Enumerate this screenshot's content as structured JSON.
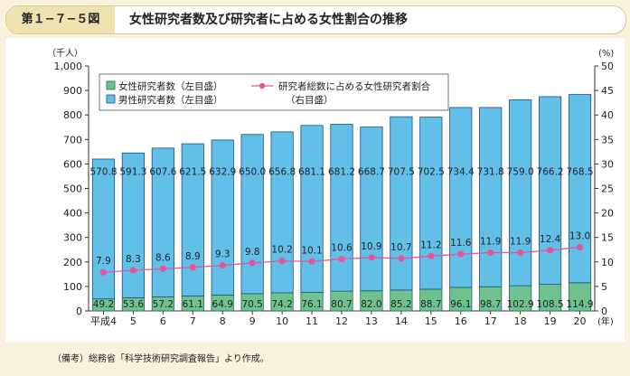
{
  "header": {
    "figure_number": "第１−７−５図",
    "title": "女性研究者数及び研究者に占める女性割合の推移"
  },
  "note": "（備考）総務省「科学技術研究調査報告」より作成。",
  "colors": {
    "female_bar": "#6fc28f",
    "male_bar": "#62c0e8",
    "ratio_line": "#e4559a",
    "background": "#f8f2dc"
  },
  "chart_data": {
    "type": "bar",
    "stacked": true,
    "y_left_unit": "（千人）",
    "y_right_unit": "(%)",
    "x_unit": "(年)",
    "y_left_ticks": [
      "0",
      "100",
      "200",
      "300",
      "400",
      "500",
      "600",
      "700",
      "800",
      "900",
      "1,000"
    ],
    "y_right_ticks": [
      "0",
      "5",
      "10",
      "15",
      "20",
      "25",
      "30",
      "35",
      "40",
      "45",
      "50"
    ],
    "ylim_left": [
      0,
      1000
    ],
    "ylim_right": [
      0,
      50
    ],
    "categories": [
      "平成4",
      "5",
      "6",
      "7",
      "8",
      "9",
      "10",
      "11",
      "12",
      "13",
      "14",
      "15",
      "16",
      "17",
      "18",
      "19",
      "20"
    ],
    "series": [
      {
        "name": "女性研究者数（左目盛）",
        "axis": "left",
        "values": [
          49.2,
          53.6,
          57.2,
          61.1,
          64.9,
          70.5,
          74.2,
          76.1,
          80.7,
          82.0,
          85.2,
          88.7,
          96.1,
          98.7,
          102.9,
          108.5,
          114.9
        ]
      },
      {
        "name": "男性研究者数（左目盛）",
        "axis": "left",
        "values": [
          570.8,
          591.3,
          607.6,
          621.5,
          632.9,
          650.0,
          656.8,
          681.1,
          681.2,
          668.7,
          707.5,
          702.5,
          734.4,
          731.8,
          759.0,
          766.2,
          768.5
        ]
      },
      {
        "name": "研究者総数に占める女性研究者割合",
        "name_line2": "（右目盛）",
        "axis": "right",
        "type": "line",
        "values": [
          7.9,
          8.3,
          8.6,
          8.9,
          9.3,
          9.8,
          10.2,
          10.1,
          10.6,
          10.9,
          10.7,
          11.2,
          11.6,
          11.9,
          11.9,
          12.4,
          13.0
        ]
      }
    ],
    "legend_position": "top-left",
    "grid": false
  }
}
